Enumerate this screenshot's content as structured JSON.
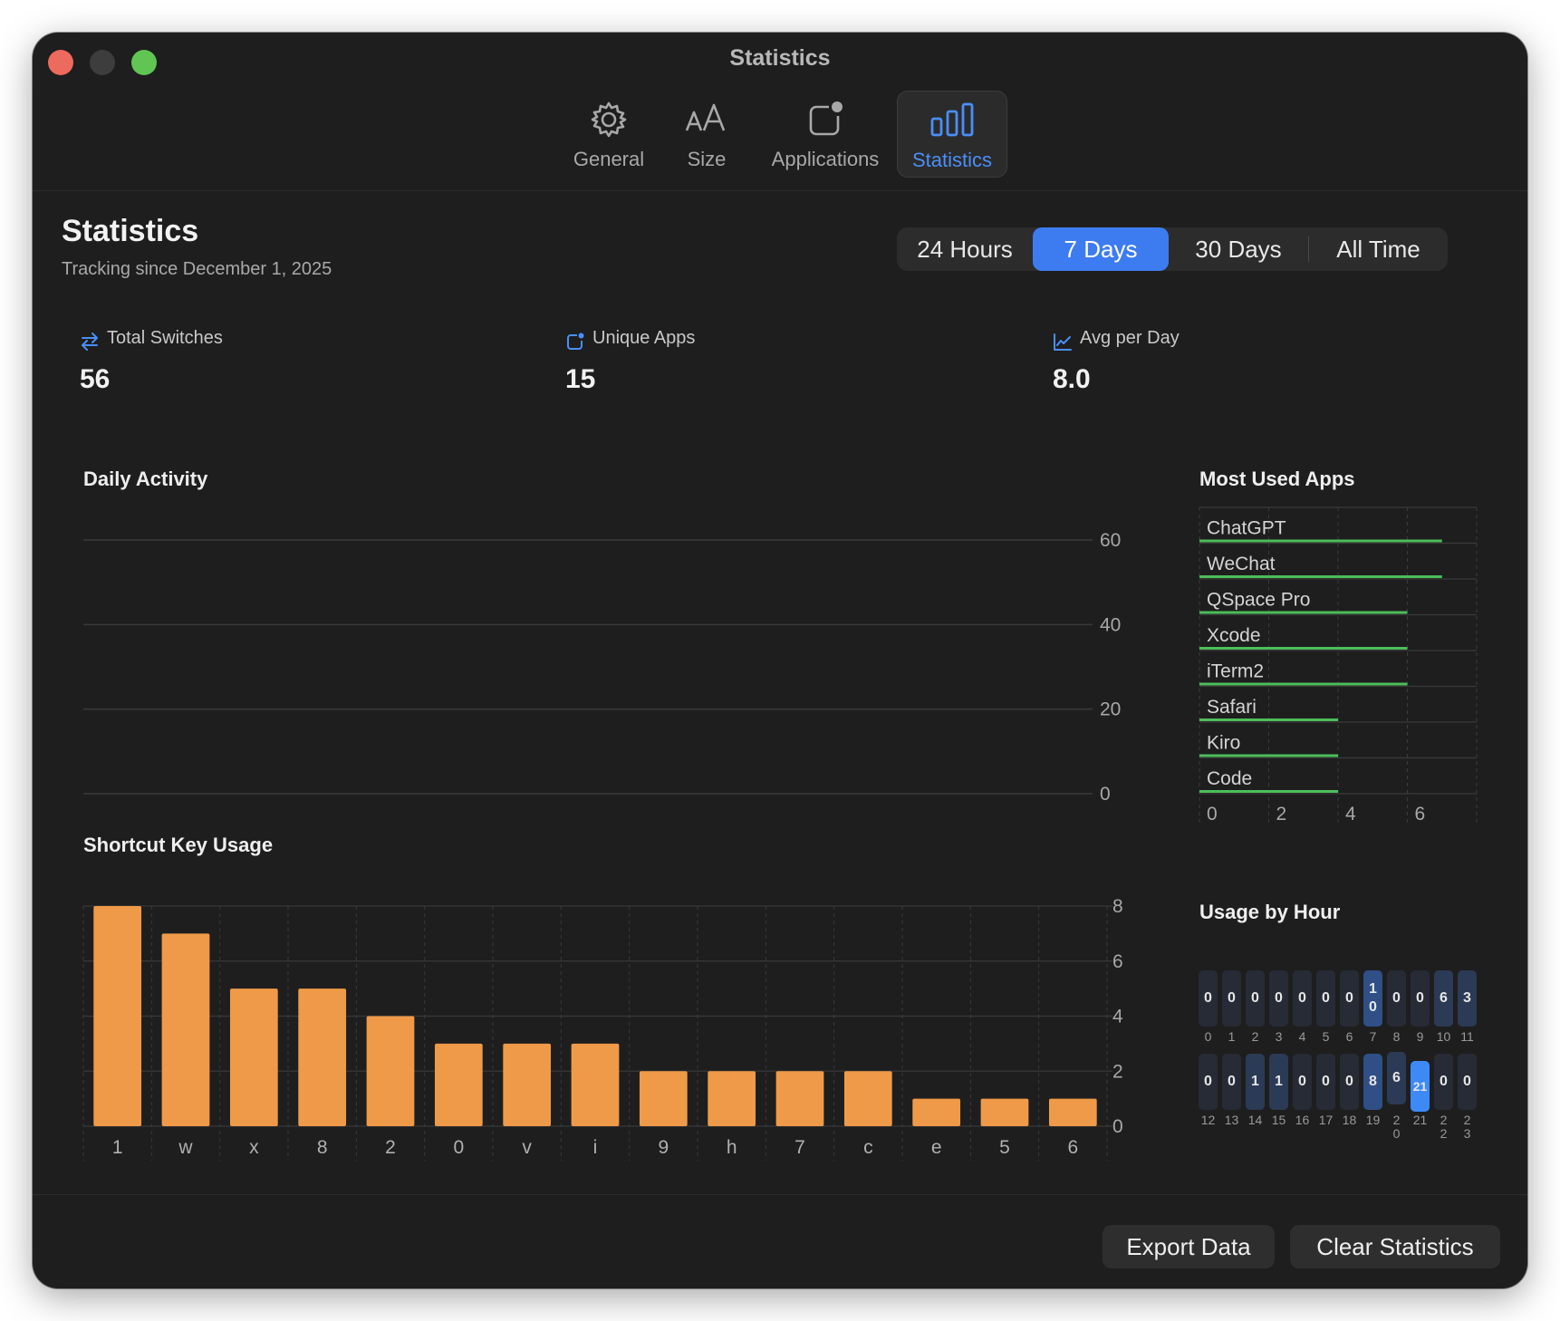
{
  "window": {
    "title": "Statistics"
  },
  "tabs": [
    {
      "label": "General",
      "icon": "gear-icon"
    },
    {
      "label": "Size",
      "icon": "text-size-icon"
    },
    {
      "label": "Applications",
      "icon": "app-badge-icon"
    },
    {
      "label": "Statistics",
      "icon": "bar-chart-icon",
      "active": true
    }
  ],
  "header": {
    "title": "Statistics",
    "subtitle": "Tracking since December 1, 2025"
  },
  "range": {
    "options": [
      "24 Hours",
      "7 Days",
      "30 Days",
      "All Time"
    ],
    "selected": "7 Days"
  },
  "stats": [
    {
      "label": "Total Switches",
      "value": "56",
      "icon": "arrows-swap-icon"
    },
    {
      "label": "Unique Apps",
      "value": "15",
      "icon": "app-badge-icon"
    },
    {
      "label": "Avg per Day",
      "value": "8.0",
      "icon": "trend-chart-icon"
    }
  ],
  "colors": {
    "accent": "#3d7cf0",
    "bar": "#ef9a48",
    "app_bar": "#4cbe5a"
  },
  "chart_data": [
    {
      "type": "bar",
      "title": "Daily Activity",
      "categories": [],
      "values": [],
      "y_ticks": [
        "0",
        "20",
        "40",
        "60"
      ],
      "ylim": [
        0,
        60
      ],
      "grid": true
    },
    {
      "type": "bar",
      "title": "Shortcut Key Usage",
      "categories": [
        "1",
        "w",
        "x",
        "8",
        "2",
        "0",
        "v",
        "i",
        "9",
        "h",
        "7",
        "c",
        "e",
        "5",
        "6"
      ],
      "values": [
        8,
        7,
        5,
        5,
        4,
        3,
        3,
        3,
        2,
        2,
        2,
        2,
        1,
        1,
        1
      ],
      "y_ticks": [
        "0",
        "2",
        "4",
        "6",
        "8"
      ],
      "ylim": [
        0,
        8
      ],
      "grid": true
    },
    {
      "type": "bar",
      "orientation": "horizontal",
      "title": "Most Used Apps",
      "categories": [
        "ChatGPT",
        "WeChat",
        "QSpace Pro",
        "Xcode",
        "iTerm2",
        "Safari",
        "Kiro",
        "Code"
      ],
      "values": [
        7,
        7,
        6,
        6,
        6,
        4,
        4,
        4
      ],
      "x_ticks": [
        "0",
        "2",
        "4",
        "6"
      ],
      "xlim": [
        0,
        8
      ],
      "grid": true
    },
    {
      "type": "heatmap",
      "title": "Usage by Hour",
      "hours": [
        "0",
        "1",
        "2",
        "3",
        "4",
        "5",
        "6",
        "7",
        "8",
        "9",
        "10",
        "11",
        "12",
        "13",
        "14",
        "15",
        "16",
        "17",
        "18",
        "19",
        "20",
        "21",
        "22",
        "23"
      ],
      "values": [
        0,
        0,
        0,
        0,
        0,
        0,
        0,
        10,
        0,
        0,
        6,
        3,
        0,
        0,
        1,
        1,
        0,
        0,
        0,
        8,
        6,
        21,
        0,
        0
      ],
      "value_labels": [
        "0",
        "0",
        "0",
        "0",
        "0",
        "0",
        "0",
        "1\n0",
        "0",
        "0",
        "6",
        "3",
        "0",
        "0",
        "1",
        "1",
        "0",
        "0",
        "0",
        "8",
        "6",
        "21",
        "0",
        "0"
      ],
      "hour_labels": [
        "0",
        "1",
        "2",
        "3",
        "4",
        "5",
        "6",
        "7",
        "8",
        "9",
        "10",
        "11",
        "12",
        "13",
        "14",
        "15",
        "16",
        "17",
        "18",
        "19",
        "2\n0",
        "21",
        "2\n2",
        "2\n3"
      ]
    }
  ],
  "footer": {
    "export_label": "Export Data",
    "clear_label": "Clear Statistics"
  }
}
